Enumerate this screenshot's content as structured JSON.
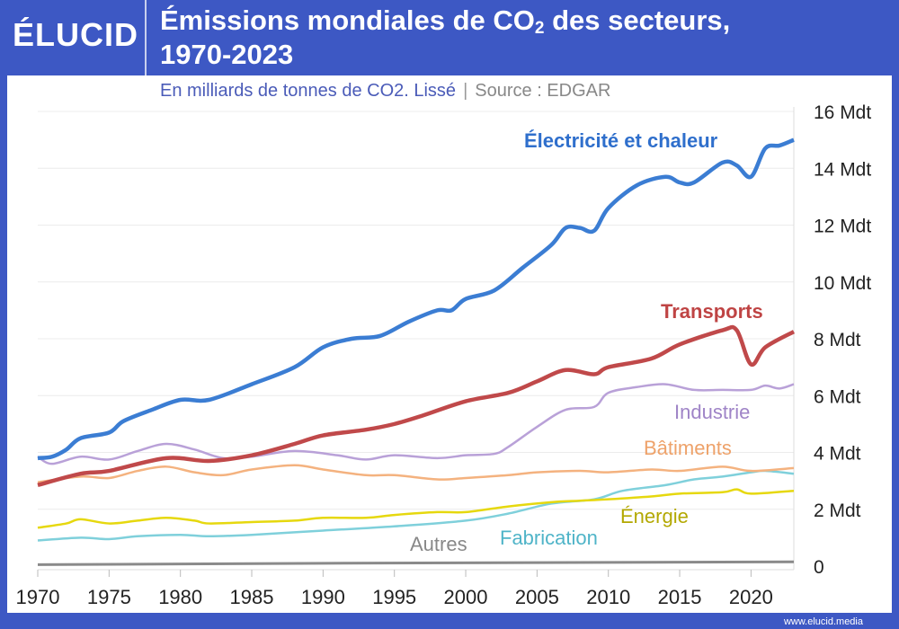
{
  "header": {
    "logo": "ÉLUCID",
    "title_part1": "Émissions mondiales de CO",
    "title_sub": "2",
    "title_part2": " des secteurs,",
    "title_line2": "1970-2023",
    "subtitle": "En milliards de tonnes de CO2. Lissé",
    "separator": "|",
    "source": "Source : EDGAR"
  },
  "footer": {
    "url": "www.elucid.media"
  },
  "chart_data": {
    "type": "line",
    "title": "Émissions mondiales de CO2 des secteurs, 1970-2023",
    "subtitle": "En milliards de tonnes de CO2. Lissé",
    "xlim": [
      1970,
      2023
    ],
    "ylim": [
      0,
      16
    ],
    "x_ticks": [
      1970,
      1975,
      1980,
      1985,
      1990,
      1995,
      2000,
      2005,
      2010,
      2015,
      2020
    ],
    "y_ticks": [
      0,
      2,
      4,
      6,
      8,
      10,
      12,
      14,
      16
    ],
    "y_tick_labels": [
      "0",
      "2 Mdt",
      "4 Mdt",
      "6 Mdt",
      "8 Mdt",
      "10 Mdt",
      "12 Mdt",
      "14 Mdt",
      "16 Mdt"
    ],
    "y_axis_side": "right",
    "grid": "horizontal",
    "legend": "inline labels",
    "series": [
      {
        "name": "Électricité et chaleur",
        "color": "#3b7dd3",
        "label_color": "#2f6fcc",
        "x": [
          1970,
          1971,
          1972,
          1973,
          1975,
          1976,
          1978,
          1980,
          1982,
          1985,
          1988,
          1990,
          1992,
          1994,
          1996,
          1998,
          1999,
          2000,
          2002,
          2004,
          2006,
          2007,
          2008,
          2009,
          2010,
          2012,
          2014,
          2015,
          2016,
          2018,
          2019,
          2020,
          2021,
          2022,
          2023
        ],
        "y": [
          3.8,
          3.85,
          4.1,
          4.5,
          4.7,
          5.1,
          5.5,
          5.85,
          5.85,
          6.4,
          7.0,
          7.7,
          8.0,
          8.1,
          8.6,
          9.0,
          9.0,
          9.4,
          9.7,
          10.5,
          11.3,
          11.9,
          11.9,
          11.8,
          12.6,
          13.4,
          13.7,
          13.5,
          13.5,
          14.2,
          14.1,
          13.7,
          14.7,
          14.8,
          15.0
        ]
      },
      {
        "name": "Transports",
        "color": "#c0494a",
        "label_color": "#bf4444",
        "x": [
          1970,
          1973,
          1975,
          1979,
          1982,
          1985,
          1988,
          1990,
          1993,
          1995,
          1997,
          2000,
          2003,
          2005,
          2007,
          2009,
          2010,
          2013,
          2015,
          2018,
          2019,
          2020,
          2021,
          2023
        ],
        "y": [
          2.85,
          3.25,
          3.35,
          3.8,
          3.7,
          3.9,
          4.3,
          4.6,
          4.8,
          5.0,
          5.3,
          5.8,
          6.1,
          6.5,
          6.9,
          6.75,
          7.0,
          7.3,
          7.8,
          8.3,
          8.3,
          7.1,
          7.7,
          8.25
        ]
      },
      {
        "name": "Industrie",
        "color": "#b9a1d8",
        "label_color": "#9f84c7",
        "x": [
          1970,
          1971,
          1973,
          1975,
          1977,
          1979,
          1981,
          1983,
          1985,
          1988,
          1991,
          1993,
          1995,
          1998,
          2000,
          2002,
          2003,
          2005,
          2007,
          2009,
          2010,
          2012,
          2014,
          2016,
          2018,
          2020,
          2021,
          2022,
          2023
        ],
        "y": [
          3.85,
          3.6,
          3.85,
          3.75,
          4.05,
          4.3,
          4.1,
          3.8,
          3.85,
          4.05,
          3.9,
          3.75,
          3.9,
          3.8,
          3.9,
          3.95,
          4.2,
          4.9,
          5.5,
          5.6,
          6.1,
          6.3,
          6.4,
          6.2,
          6.2,
          6.2,
          6.35,
          6.25,
          6.4
        ]
      },
      {
        "name": "Bâtiments",
        "color": "#f4b27f",
        "label_color": "#eea26a",
        "x": [
          1970,
          1973,
          1975,
          1977,
          1979,
          1981,
          1983,
          1985,
          1988,
          1990,
          1993,
          1995,
          1998,
          2000,
          2003,
          2005,
          2008,
          2010,
          2013,
          2015,
          2018,
          2020,
          2023
        ],
        "y": [
          2.95,
          3.15,
          3.1,
          3.35,
          3.5,
          3.3,
          3.2,
          3.4,
          3.55,
          3.4,
          3.2,
          3.2,
          3.05,
          3.1,
          3.2,
          3.3,
          3.35,
          3.3,
          3.4,
          3.35,
          3.5,
          3.35,
          3.45
        ]
      },
      {
        "name": "Énergie",
        "color": "#e6d80e",
        "label_color": "#b3a800",
        "x": [
          1970,
          1972,
          1973,
          1975,
          1977,
          1979,
          1981,
          1982,
          1985,
          1988,
          1990,
          1993,
          1995,
          1998,
          2000,
          2003,
          2006,
          2008,
          2010,
          2013,
          2015,
          2018,
          2019,
          2020,
          2023
        ],
        "y": [
          1.35,
          1.5,
          1.65,
          1.5,
          1.6,
          1.7,
          1.6,
          1.5,
          1.55,
          1.6,
          1.7,
          1.7,
          1.8,
          1.9,
          1.9,
          2.1,
          2.25,
          2.3,
          2.35,
          2.45,
          2.55,
          2.6,
          2.7,
          2.55,
          2.65
        ]
      },
      {
        "name": "Fabrication",
        "color": "#7fd0db",
        "label_color": "#4fb4c8",
        "x": [
          1970,
          1973,
          1975,
          1977,
          1980,
          1982,
          1985,
          1990,
          1995,
          2000,
          2003,
          2006,
          2009,
          2011,
          2014,
          2016,
          2018,
          2020,
          2021,
          2023
        ],
        "y": [
          0.9,
          1.0,
          0.95,
          1.05,
          1.1,
          1.05,
          1.1,
          1.25,
          1.4,
          1.6,
          1.85,
          2.2,
          2.35,
          2.65,
          2.85,
          3.05,
          3.15,
          3.3,
          3.35,
          3.25
        ]
      },
      {
        "name": "Autres",
        "color": "#8a8a8a",
        "label_color": "#888888",
        "x": [
          1970,
          1990,
          2023
        ],
        "y": [
          0.05,
          0.1,
          0.15
        ]
      }
    ]
  }
}
